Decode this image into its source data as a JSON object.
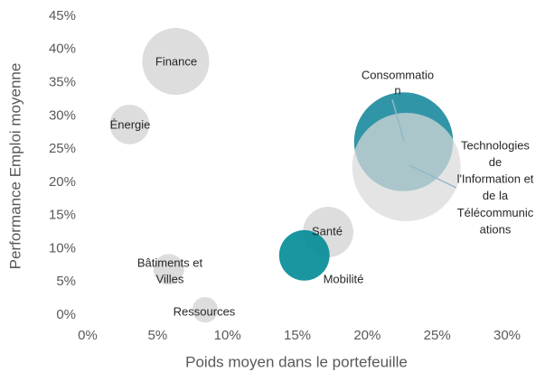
{
  "chart_data": {
    "type": "scatter",
    "xlabel": "Poids moyen dans le portefeuille",
    "ylabel": "Performance Emploi moyenne",
    "xlim": [
      0,
      30
    ],
    "ylim": [
      0,
      45
    ],
    "xticks": [
      {
        "value": 0,
        "label": "0%"
      },
      {
        "value": 5,
        "label": "5%"
      },
      {
        "value": 10,
        "label": "10%"
      },
      {
        "value": 15,
        "label": "15%"
      },
      {
        "value": 20,
        "label": "20%"
      },
      {
        "value": 25,
        "label": "25%"
      },
      {
        "value": 30,
        "label": "30%"
      }
    ],
    "yticks": [
      {
        "value": 0,
        "label": "0%"
      },
      {
        "value": 5,
        "label": "5%"
      },
      {
        "value": 10,
        "label": "10%"
      },
      {
        "value": 15,
        "label": "15%"
      },
      {
        "value": 20,
        "label": "20%"
      },
      {
        "value": 25,
        "label": "25%"
      },
      {
        "value": 30,
        "label": "30%"
      },
      {
        "value": 35,
        "label": "35%"
      },
      {
        "value": 40,
        "label": "40%"
      },
      {
        "value": 45,
        "label": "45%"
      }
    ],
    "labels": [
      [
        "Finance"
      ],
      [
        "Énergie"
      ],
      [
        "Consommatio",
        "n"
      ],
      [
        "Technologies",
        "de",
        "l'Information et",
        "de la",
        "Télécommunic",
        "ations"
      ],
      [
        "Santé"
      ],
      [
        "Mobilité"
      ],
      [
        "Bâtiments et",
        "Villes"
      ],
      [
        "Ressources"
      ]
    ],
    "x": [
      6.3,
      3.0,
      22.6,
      22.8,
      17.2,
      15.5,
      5.8,
      8.4
    ],
    "values": [
      38.2,
      28.7,
      26.1,
      22.3,
      12.5,
      9.0,
      6.9,
      0.8
    ],
    "sizes": [
      13.7,
      4.8,
      30,
      36,
      7.8,
      7.8,
      2.9,
      2.0
    ],
    "colors": [
      "#d9d9d9",
      "#d9d9d9",
      "#1a8a9c",
      "#d9d9d9",
      "#d9d9d9",
      "#008b95",
      "#d9d9d9",
      "#d9d9d9"
    ]
  }
}
